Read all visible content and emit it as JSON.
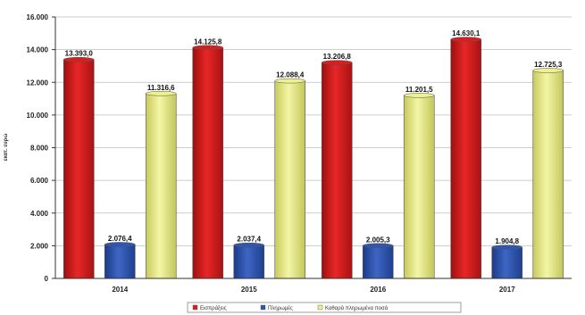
{
  "chart_data": {
    "type": "bar",
    "ylabel": "εκατ. ευρώ",
    "ylim": [
      0,
      16000
    ],
    "yticks": [
      "0",
      "2.000",
      "4.000",
      "6.000",
      "8.000",
      "10.000",
      "12.000",
      "14.000",
      "16.000"
    ],
    "categories": [
      "2014",
      "2015",
      "2016",
      "2017"
    ],
    "series": [
      {
        "name": "Εισπράξεις",
        "color": "#d81f1f",
        "values": [
          13393.0,
          14125.8,
          13206.8,
          14630.1
        ],
        "labels": [
          "13.393,0",
          "14.125,8",
          "13.206,8",
          "14.630,1"
        ]
      },
      {
        "name": "Πληρωμές",
        "color": "#2f56b0",
        "values": [
          2076.4,
          2037.4,
          2005.3,
          1904.8
        ],
        "labels": [
          "2.076,4",
          "2.037,4",
          "2.005,3",
          "1.904,8"
        ]
      },
      {
        "name": "Καθαρά πληρωμένα ποσά",
        "color": "#eef08c",
        "values": [
          11316.6,
          12088.4,
          11201.5,
          12725.3
        ],
        "labels": [
          "11.316,6",
          "12.088,4",
          "11.201,5",
          "12.725,3"
        ]
      }
    ],
    "grid": true,
    "legend": "bottom"
  }
}
